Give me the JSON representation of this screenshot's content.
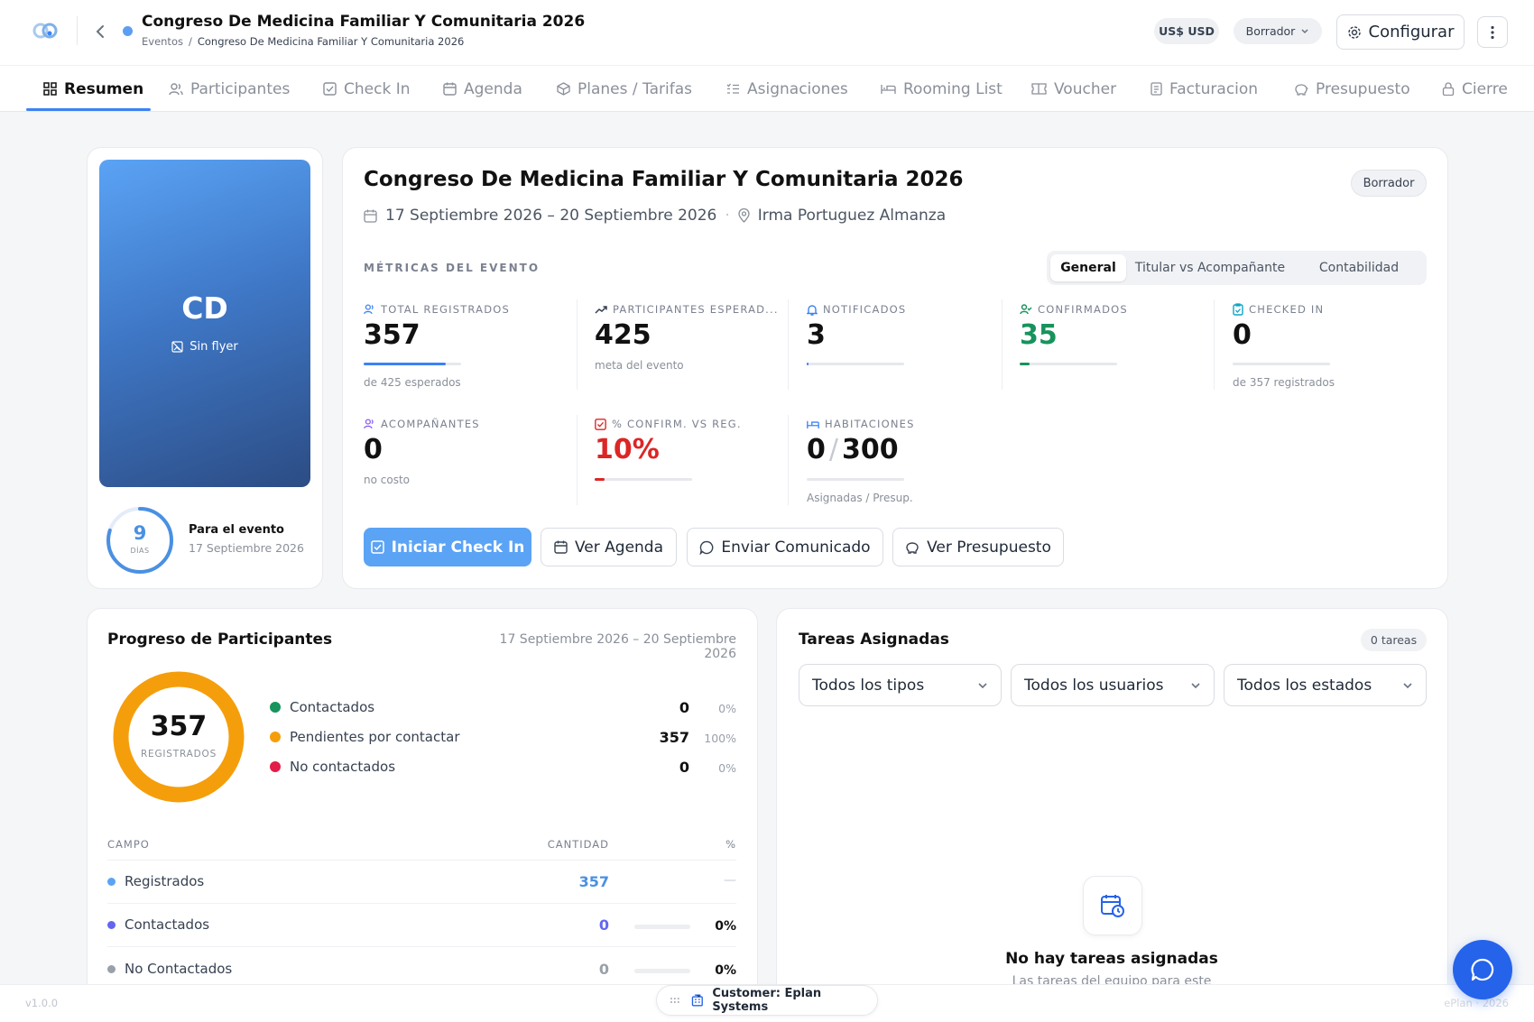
{
  "header": {
    "title": "Congreso De Medicina Familiar Y Comunitaria 2026",
    "breadcrumb_root": "Eventos",
    "breadcrumb_sep": "/",
    "breadcrumb_current": "Congreso De Medicina Familiar Y Comunitaria 2026",
    "currency": "US$ USD",
    "status": "Borrador",
    "configure_label": "Configurar"
  },
  "tabs": [
    {
      "label": "Resumen"
    },
    {
      "label": "Participantes"
    },
    {
      "label": "Check In"
    },
    {
      "label": "Agenda"
    },
    {
      "label": "Planes / Tarifas"
    },
    {
      "label": "Asignaciones"
    },
    {
      "label": "Rooming List"
    },
    {
      "label": "Voucher"
    },
    {
      "label": "Facturacion"
    },
    {
      "label": "Presupuesto"
    },
    {
      "label": "Cierre"
    }
  ],
  "flyer": {
    "initials": "CD",
    "no_flyer": "Sin flyer"
  },
  "countdown": {
    "days": "9",
    "unit": "DÍAS",
    "label": "Para el evento",
    "date": "17 Septiembre 2026",
    "progress": 0.8
  },
  "event": {
    "title": "Congreso De Medicina Familiar Y Comunitaria 2026",
    "dates": "17 Septiembre 2026 – 20 Septiembre 2026",
    "dot": "·",
    "location": "Irma Portuguez Almanza",
    "status": "Borrador"
  },
  "metrics_heading": "MÉTRICAS DEL EVENTO",
  "metric_tabs": [
    "General",
    "Titular vs Acompañante",
    "Contabilidad"
  ],
  "metrics": {
    "total": {
      "label": "TOTAL REGISTRADOS",
      "value": "357",
      "sub": "de 425 esperados",
      "progress": 0.84
    },
    "expected": {
      "label": "PARTICIPANTES ESPERAD...",
      "value": "425",
      "sub": "meta del evento"
    },
    "notified": {
      "label": "NOTIFICADOS",
      "value": "3",
      "progress": 0.01
    },
    "confirmed": {
      "label": "CONFIRMADOS",
      "value": "35",
      "progress": 0.1
    },
    "checked": {
      "label": "CHECKED IN",
      "value": "0",
      "sub": "de 357 registrados"
    },
    "companions": {
      "label": "ACOMPAÑANTES",
      "value": "0",
      "sub": "no costo"
    },
    "confirm_pct": {
      "label": "% CONFIRM. VS REG.",
      "value": "10%",
      "progress": 0.1
    },
    "rooms": {
      "label": "HABITACIONES",
      "assigned": "0",
      "sep": "/",
      "budget": "300",
      "sub": "Asignadas / Presup."
    }
  },
  "actions": {
    "checkin": "Iniciar Check In",
    "agenda": "Ver Agenda",
    "comunicado": "Enviar Comunicado",
    "presupuesto": "Ver Presupuesto"
  },
  "progress": {
    "title": "Progreso de Participantes",
    "dates": "17 Septiembre 2026 – 20 Septiembre 2026",
    "total": "357",
    "total_label": "REGISTRADOS",
    "legend": [
      {
        "label": "Contactados",
        "count": "0",
        "pct": "0%",
        "color": "#17935c"
      },
      {
        "label": "Pendientes por contactar",
        "count": "357",
        "pct": "100%",
        "color": "#f59e0b"
      },
      {
        "label": "No contactados",
        "count": "0",
        "pct": "0%",
        "color": "#e11d48"
      }
    ],
    "table_headers": {
      "campo": "CAMPO",
      "cantidad": "CANTIDAD",
      "pct": "%"
    },
    "rows": [
      {
        "label": "Registrados",
        "count": "357",
        "pct": "—"
      },
      {
        "label": "Contactados",
        "count": "0",
        "pct": "0%"
      },
      {
        "label": "No Contactados",
        "count": "0",
        "pct": "0%"
      }
    ]
  },
  "tasks": {
    "title": "Tareas Asignadas",
    "count": "0 tareas",
    "filters": [
      "Todos los tipos",
      "Todos los usuarios",
      "Todos los estados"
    ],
    "empty_title": "No hay tareas asignadas",
    "empty_sub": "Las tareas del equipo para este"
  },
  "footer": {
    "version": "v1.0.0",
    "customer": "Customer: Eplan Systems",
    "brand": "ePlan · 2026"
  }
}
